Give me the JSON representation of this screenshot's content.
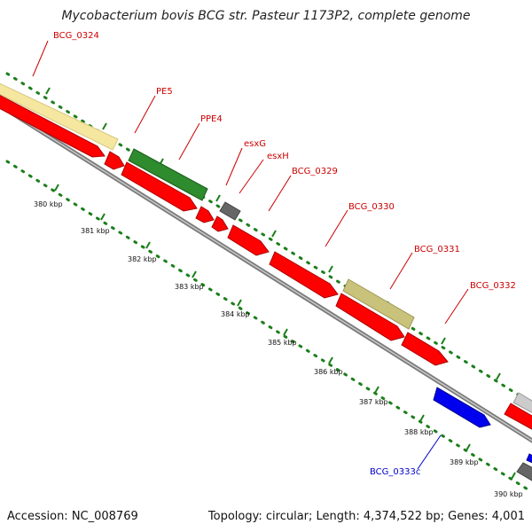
{
  "map": {
    "title": "Mycobacterium bovis BCG str. Pasteur 1173P2, complete genome",
    "accession": "Accession: NC_008769",
    "topology": "Topology: circular; Length: 4,374,522 bp; Genes: 4,001"
  },
  "colors": {
    "forward_label": "#cc0000",
    "reverse_label": "#0000cc",
    "cds": "#ff0000",
    "pe_ppe": "#f5e6a0",
    "esx_family": "#2e8b2e",
    "hypothetical": "#666666",
    "conserved": "#c9c27a",
    "reverse_cds": "#0000ee",
    "backbone": "#888888",
    "tick_green": "#1a7f1a"
  },
  "gene_labels": [
    {
      "id": "lbl-bcg0324",
      "text": "BCG_0324",
      "strand": "forward"
    },
    {
      "id": "lbl-pe5",
      "text": "PE5",
      "strand": "forward"
    },
    {
      "id": "lbl-ppe4",
      "text": "PPE4",
      "strand": "forward"
    },
    {
      "id": "lbl-esxg",
      "text": "esxG",
      "strand": "forward"
    },
    {
      "id": "lbl-esxh",
      "text": "esxH",
      "strand": "forward"
    },
    {
      "id": "lbl-bcg0329",
      "text": "BCG_0329",
      "strand": "forward"
    },
    {
      "id": "lbl-bcg0330",
      "text": "BCG_0330",
      "strand": "forward"
    },
    {
      "id": "lbl-bcg0331",
      "text": "BCG_0331",
      "strand": "forward"
    },
    {
      "id": "lbl-bcg0332",
      "text": "BCG_0332",
      "strand": "forward"
    },
    {
      "id": "lbl-bcg0333c",
      "text": "BCG_0333c",
      "strand": "reverse"
    }
  ],
  "scale_ticks": [
    "380 kbp",
    "381 kbp",
    "382 kbp",
    "383 kbp",
    "384 kbp",
    "385 kbp",
    "386 kbp",
    "387 kbp",
    "388 kbp",
    "389 kbp",
    "390 kbp"
  ]
}
